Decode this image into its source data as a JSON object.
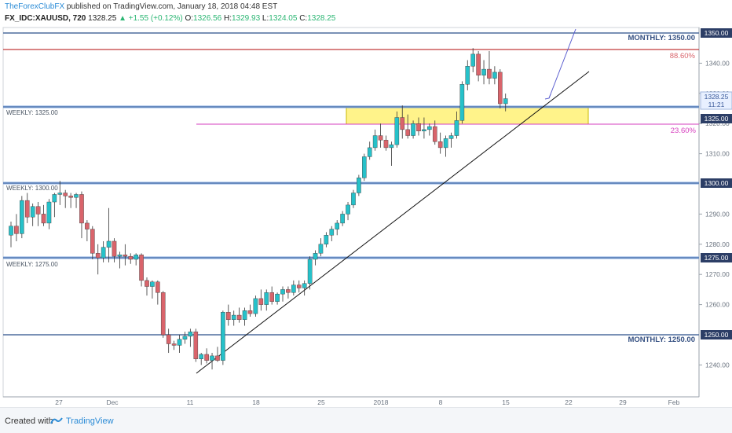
{
  "header": {
    "author": "TheForexClubFX",
    "published": " published on TradingView.com, January 18, 2018 04:48 EST",
    "symbol": "FX_IDC:XAUUSD, 720",
    "last": "1328.25",
    "change": "▲ +1.55 (+0.12%)",
    "o_label": "O:",
    "o": "1326.56",
    "h_label": "H:",
    "h": "1329.93",
    "l_label": "L:",
    "l": "1324.05",
    "c_label": "C:",
    "c": "1328.25"
  },
  "footer": {
    "created": "Created with",
    "brand": "TradingView"
  },
  "levels": {
    "monthly_1350": "MONTHLY: 1350.00",
    "monthly_1250": "MONTHLY: 1250.00",
    "weekly_1325": "WEEKLY: 1325.00",
    "weekly_1300": "WEEKLY: 1300.00",
    "weekly_1275": "WEEKLY: 1275.00",
    "fib_886": "88.60%",
    "fib_236": "23.60%"
  },
  "price_tags": {
    "p1350": "1350.00",
    "p1325": "1325.00",
    "p1300": "1300.00",
    "p1275": "1275.00",
    "p1250": "1250.00",
    "last_price": "1328.25",
    "countdown": "11:21"
  },
  "colors": {
    "up": "#26c1c9",
    "down": "#d9646b",
    "level": "#4f6d9e",
    "fib_top": "#c23b3b",
    "fib_low": "#d63fbf",
    "zone": "#fff176"
  },
  "chart_data": {
    "type": "candlestick",
    "title": "FX_IDC:XAUUSD, 720",
    "xlabel": "",
    "ylabel": "",
    "ylim": [
      1233,
      1352
    ],
    "y_ticks": [
      1240,
      1250,
      1260,
      1270,
      1280,
      1290,
      1300,
      1310,
      1320,
      1330,
      1340,
      1350
    ],
    "x_ticks": [
      {
        "label": "27",
        "index": 12
      },
      {
        "label": "Dec",
        "index": 24
      },
      {
        "label": "11",
        "index": 41
      },
      {
        "label": "18",
        "index": 55
      },
      {
        "label": "25",
        "index": 69
      },
      {
        "label": "2018",
        "index": 83
      },
      {
        "label": "8",
        "index": 96
      },
      {
        "label": "15",
        "index": 110
      },
      {
        "label": "22",
        "index": 124
      },
      {
        "label": "29",
        "index": 138
      },
      {
        "label": "Feb",
        "index": 149
      }
    ],
    "candles": [
      [
        1283.0,
        1287.5,
        1279.0,
        1286.0
      ],
      [
        1286.0,
        1290.0,
        1281.0,
        1283.5
      ],
      [
        1283.5,
        1296.0,
        1282.0,
        1294.5
      ],
      [
        1294.5,
        1297.0,
        1287.0,
        1289.0
      ],
      [
        1289.0,
        1293.5,
        1286.0,
        1292.5
      ],
      [
        1292.5,
        1294.0,
        1286.0,
        1290.0
      ],
      [
        1290.0,
        1293.0,
        1286.0,
        1287.0
      ],
      [
        1287.0,
        1295.0,
        1285.0,
        1294.0
      ],
      [
        1294.0,
        1297.0,
        1289.0,
        1296.5
      ],
      [
        1296.5,
        1301.0,
        1293.0,
        1297.0
      ],
      [
        1297.0,
        1298.0,
        1292.0,
        1296.0
      ],
      [
        1296.0,
        1297.0,
        1292.0,
        1295.5
      ],
      [
        1295.5,
        1297.0,
        1292.0,
        1296.5
      ],
      [
        1296.5,
        1297.5,
        1282.0,
        1287.0
      ],
      [
        1287.0,
        1288.0,
        1281.0,
        1285.0
      ],
      [
        1285.0,
        1286.0,
        1275.0,
        1277.0
      ],
      [
        1277.0,
        1280.0,
        1270.0,
        1275.5
      ],
      [
        1275.5,
        1281.0,
        1274.0,
        1279.0
      ],
      [
        1279.0,
        1292.0,
        1274.0,
        1281.0
      ],
      [
        1281.0,
        1282.0,
        1274.0,
        1276.0
      ],
      [
        1276.0,
        1277.5,
        1272.0,
        1276.5
      ],
      [
        1276.5,
        1280.0,
        1273.0,
        1276.0
      ],
      [
        1276.0,
        1277.0,
        1273.5,
        1275.0
      ],
      [
        1275.0,
        1277.0,
        1273.0,
        1276.5
      ],
      [
        1276.5,
        1277.0,
        1266.0,
        1268.0
      ],
      [
        1268.0,
        1269.0,
        1263.0,
        1266.0
      ],
      [
        1266.0,
        1268.0,
        1262.0,
        1267.5
      ],
      [
        1267.5,
        1268.0,
        1260.0,
        1264.0
      ],
      [
        1264.0,
        1264.5,
        1249.0,
        1250.0
      ],
      [
        1250.0,
        1252.0,
        1244.0,
        1247.0
      ],
      [
        1247.0,
        1248.0,
        1245.0,
        1246.5
      ],
      [
        1246.5,
        1250.0,
        1244.0,
        1248.5
      ],
      [
        1248.5,
        1251.0,
        1247.0,
        1249.5
      ],
      [
        1249.5,
        1252.0,
        1246.0,
        1251.0
      ],
      [
        1251.0,
        1252.0,
        1241.0,
        1242.0
      ],
      [
        1242.0,
        1244.0,
        1240.0,
        1243.5
      ],
      [
        1243.5,
        1245.5,
        1240.5,
        1241.5
      ],
      [
        1241.5,
        1244.0,
        1238.5,
        1243.0
      ],
      [
        1243.0,
        1246.0,
        1241.0,
        1241.5
      ],
      [
        1241.5,
        1258.0,
        1240.0,
        1257.5
      ],
      [
        1257.5,
        1260.0,
        1253.0,
        1255.0
      ],
      [
        1255.0,
        1258.0,
        1253.0,
        1256.5
      ],
      [
        1256.5,
        1259.0,
        1254.0,
        1255.0
      ],
      [
        1255.0,
        1259.0,
        1253.0,
        1258.0
      ],
      [
        1258.0,
        1260.0,
        1256.0,
        1257.0
      ],
      [
        1257.0,
        1263.0,
        1256.0,
        1262.0
      ],
      [
        1262.0,
        1265.0,
        1258.0,
        1260.0
      ],
      [
        1260.0,
        1265.0,
        1258.0,
        1264.0
      ],
      [
        1264.0,
        1266.0,
        1260.0,
        1261.0
      ],
      [
        1261.0,
        1264.0,
        1260.0,
        1263.5
      ],
      [
        1263.5,
        1266.0,
        1261.0,
        1265.0
      ],
      [
        1265.0,
        1266.0,
        1262.0,
        1264.0
      ],
      [
        1264.0,
        1268.0,
        1263.0,
        1266.5
      ],
      [
        1266.5,
        1268.0,
        1264.0,
        1265.5
      ],
      [
        1265.5,
        1268.0,
        1263.0,
        1267.0
      ],
      [
        1267.0,
        1276.0,
        1265.0,
        1275.0
      ],
      [
        1275.0,
        1278.0,
        1273.0,
        1277.0
      ],
      [
        1277.0,
        1282.0,
        1276.0,
        1280.0
      ],
      [
        1280.0,
        1284.0,
        1279.0,
        1283.0
      ],
      [
        1283.0,
        1286.0,
        1281.0,
        1285.0
      ],
      [
        1285.0,
        1288.0,
        1283.0,
        1287.0
      ],
      [
        1287.0,
        1291.0,
        1286.0,
        1290.0
      ],
      [
        1290.0,
        1294.0,
        1288.0,
        1293.0
      ],
      [
        1293.0,
        1298.0,
        1292.0,
        1297.0
      ],
      [
        1297.0,
        1303.0,
        1296.0,
        1302.0
      ],
      [
        1302.0,
        1310.0,
        1301.0,
        1309.0
      ],
      [
        1309.0,
        1314.0,
        1308.0,
        1312.0
      ],
      [
        1312.0,
        1318.0,
        1311.0,
        1316.0
      ],
      [
        1316.0,
        1320.0,
        1312.0,
        1314.5
      ],
      [
        1314.5,
        1316.0,
        1311.0,
        1312.0
      ],
      [
        1312.0,
        1314.0,
        1306.0,
        1313.0
      ],
      [
        1313.0,
        1324.0,
        1312.0,
        1322.0
      ],
      [
        1322.0,
        1326.0,
        1315.0,
        1318.0
      ],
      [
        1318.0,
        1323.0,
        1315.0,
        1316.0
      ],
      [
        1316.0,
        1321.0,
        1315.0,
        1320.0
      ],
      [
        1320.0,
        1322.0,
        1316.0,
        1317.5
      ],
      [
        1317.5,
        1322.0,
        1315.0,
        1318.0
      ],
      [
        1318.0,
        1320.0,
        1316.0,
        1319.0
      ],
      [
        1319.0,
        1321.0,
        1313.0,
        1314.0
      ],
      [
        1314.0,
        1317.0,
        1310.0,
        1312.0
      ],
      [
        1312.0,
        1316.0,
        1309.0,
        1315.0
      ],
      [
        1315.0,
        1317.0,
        1312.0,
        1316.0
      ],
      [
        1316.0,
        1324.0,
        1315.0,
        1321.0
      ],
      [
        1321.0,
        1334.0,
        1320.0,
        1333.0
      ],
      [
        1333.0,
        1341.0,
        1331.0,
        1339.0
      ],
      [
        1339.0,
        1345.0,
        1337.0,
        1343.0
      ],
      [
        1343.0,
        1344.0,
        1334.0,
        1336.0
      ],
      [
        1336.0,
        1341.0,
        1333.0,
        1338.0
      ],
      [
        1338.0,
        1344.0,
        1333.0,
        1335.0
      ],
      [
        1335.0,
        1339.0,
        1333.0,
        1337.0
      ],
      [
        1337.0,
        1338.0,
        1325.0,
        1326.56
      ],
      [
        1326.56,
        1329.93,
        1324.05,
        1328.25
      ]
    ],
    "candle_x_start": 6,
    "candle_x_step": 1.1
  }
}
